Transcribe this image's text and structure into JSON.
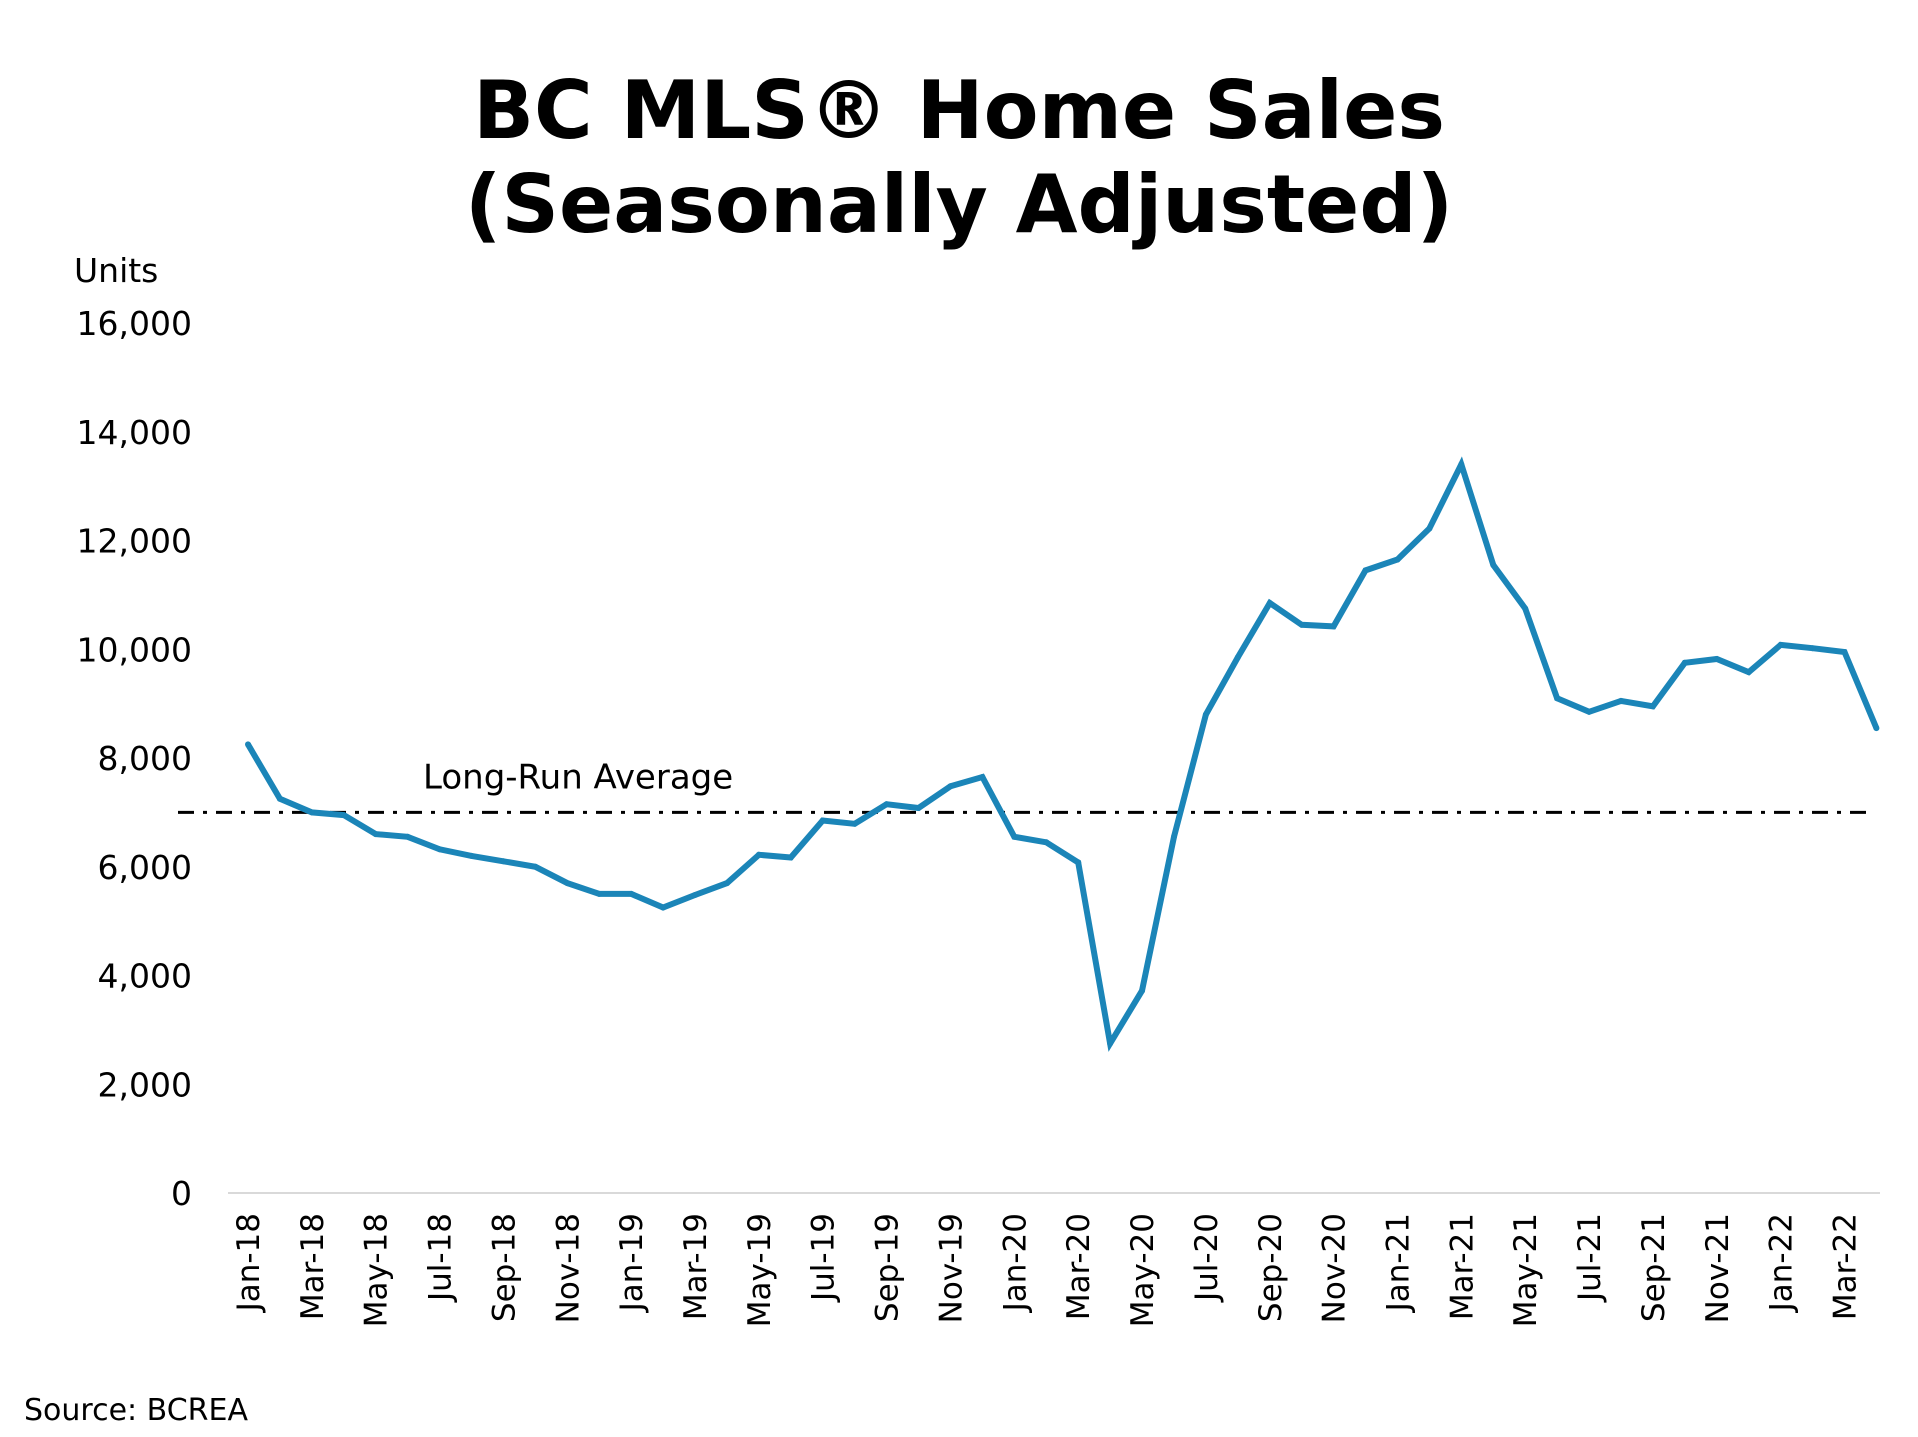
{
  "chart_data": {
    "type": "line",
    "title": "BC MLS® Home Sales",
    "subtitle": "(Seasonally Adjusted)",
    "ylabel": "Units",
    "xlabel": "",
    "ylim": [
      0,
      16000
    ],
    "yticks": [
      "0",
      "2,000",
      "4,000",
      "6,000",
      "8,000",
      "10,000",
      "12,000",
      "14,000",
      "16,000"
    ],
    "grid": false,
    "legend": "none",
    "series_color": "#1b85b8",
    "x": [
      "Jan-18",
      "Feb-18",
      "Mar-18",
      "Apr-18",
      "May-18",
      "Jun-18",
      "Jul-18",
      "Aug-18",
      "Sep-18",
      "Oct-18",
      "Nov-18",
      "Dec-18",
      "Jan-19",
      "Feb-19",
      "Mar-19",
      "Apr-19",
      "May-19",
      "Jun-19",
      "Jul-19",
      "Aug-19",
      "Sep-19",
      "Oct-19",
      "Nov-19",
      "Dec-19",
      "Jan-20",
      "Feb-20",
      "Mar-20",
      "Apr-20",
      "May-20",
      "Jun-20",
      "Jul-20",
      "Aug-20",
      "Sep-20",
      "Oct-20",
      "Nov-20",
      "Dec-20",
      "Jan-21",
      "Feb-21",
      "Mar-21",
      "Apr-21",
      "May-21",
      "Jun-21",
      "Jul-21",
      "Aug-21",
      "Sep-21",
      "Oct-21",
      "Nov-21",
      "Dec-21",
      "Jan-22",
      "Feb-22",
      "Mar-22",
      "Apr-22"
    ],
    "xtick_labels": [
      "Jan-18",
      "Mar-18",
      "May-18",
      "Jul-18",
      "Sep-18",
      "Nov-18",
      "Jan-19",
      "Mar-19",
      "May-19",
      "Jul-19",
      "Sep-19",
      "Nov-19",
      "Jan-20",
      "Mar-20",
      "May-20",
      "Jul-20",
      "Sep-20",
      "Nov-20",
      "Jan-21",
      "Mar-21",
      "May-21",
      "Jul-21",
      "Sep-21",
      "Nov-21",
      "Jan-22",
      "Mar-22"
    ],
    "series": [
      {
        "values": [
          8250,
          7250,
          7000,
          6950,
          6600,
          6550,
          6320,
          6200,
          6100,
          6000,
          5700,
          5500,
          5500,
          5250,
          5480,
          5700,
          6220,
          6170,
          6850,
          6790,
          7150,
          7080,
          7480,
          7650,
          6550,
          6450,
          6080,
          2750,
          3720,
          6550,
          8800,
          9850,
          10850,
          10450,
          10420,
          11450,
          11650,
          12220,
          13400,
          11550,
          10750,
          9100,
          8850,
          9050,
          8950,
          9750,
          9820,
          9580,
          10080,
          10020,
          9950,
          8550
        ]
      }
    ],
    "reference_line": {
      "label": "Long-Run Average",
      "value": 7000,
      "style": "dash-dot",
      "color": "#000000"
    }
  },
  "footer": {
    "source": "Source: BCREA"
  }
}
